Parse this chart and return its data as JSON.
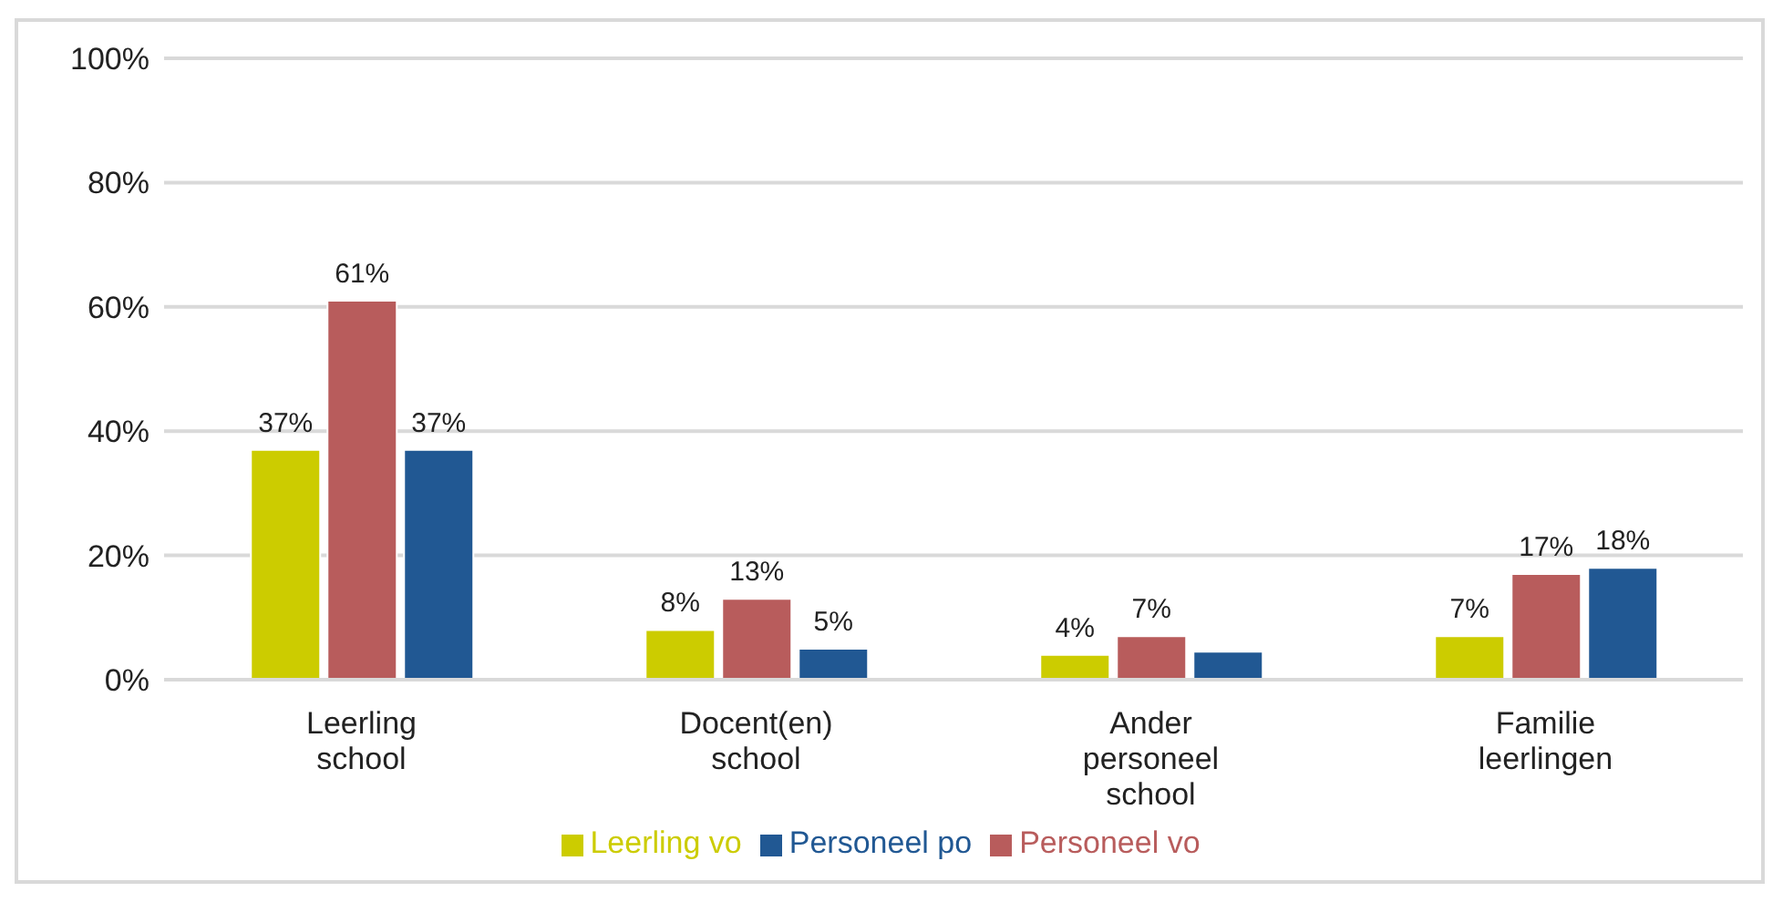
{
  "chart_data": {
    "type": "bar",
    "categories": [
      "Leerling school",
      "Docent(en) school",
      "Ander personeel school",
      "Familie leerlingen"
    ],
    "series": [
      {
        "name": "Leerling vo",
        "color": "#cccc00",
        "values": [
          37,
          8,
          4,
          7
        ],
        "value_labels": [
          "37%",
          "8%",
          "4%",
          "7%"
        ]
      },
      {
        "name": "Personeel vo",
        "color": "#b85c5c",
        "values": [
          61,
          13,
          7,
          17
        ],
        "value_labels": [
          "61%",
          "13%",
          "7%",
          "17%"
        ]
      },
      {
        "name": "Personeel po",
        "color": "#215893",
        "values": [
          37,
          5,
          4.5,
          18
        ],
        "value_labels": [
          "37%",
          "5%",
          null,
          "18%"
        ]
      }
    ],
    "ylim": [
      0,
      100
    ],
    "yticks": [
      {
        "value": 0,
        "label": "0%"
      },
      {
        "value": 20,
        "label": "20%"
      },
      {
        "value": 40,
        "label": "40%"
      },
      {
        "value": 60,
        "label": "60%"
      },
      {
        "value": 80,
        "label": "80%"
      },
      {
        "value": 100,
        "label": "100%"
      }
    ],
    "grid": "y",
    "legend": "bottom"
  }
}
